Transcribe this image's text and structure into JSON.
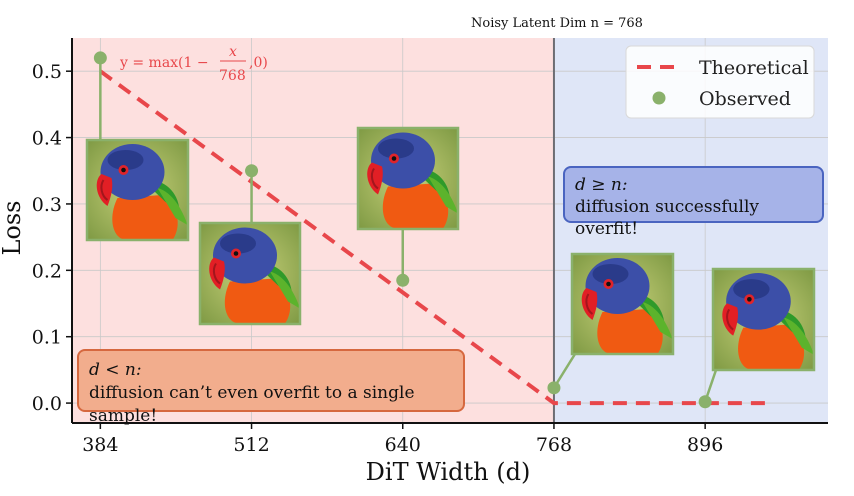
{
  "chart_data": {
    "type": "line",
    "title": "Noisy Latent Dim n = 768",
    "xlabel": "DiT Width (d)",
    "ylabel": "Loss",
    "x_ticks": [
      384,
      512,
      640,
      768,
      896
    ],
    "y_ticks": [
      "0.0",
      "0.1",
      "0.2",
      "0.3",
      "0.4",
      "0.5"
    ],
    "xlim": [
      360,
      1000
    ],
    "ylim": [
      -0.03,
      0.55
    ],
    "threshold_x": 768,
    "series": [
      {
        "name": "Theoretical",
        "style": "dashed",
        "color": "#e8474b",
        "formula": "y = max(1 − x/768, 0)",
        "x": [
          384,
          768,
          950
        ],
        "y": [
          0.5,
          0.0,
          0.0
        ]
      },
      {
        "name": "Observed",
        "style": "marker",
        "color": "#8ab16b",
        "x": [
          384,
          512,
          640,
          768,
          896
        ],
        "y": [
          0.52,
          0.35,
          0.185,
          0.023,
          0.002
        ]
      }
    ],
    "regions": [
      {
        "name": "d < n",
        "color": "#fde0df"
      },
      {
        "name": "d ≥ n",
        "color": "#dfe6f7"
      }
    ],
    "legend": [
      "Theoretical",
      "Observed"
    ],
    "legend_position": "top-right"
  },
  "callouts": {
    "left_math": "d < n:",
    "left_text": "diffusion can’t even overfit to a single sample!",
    "right_math": "d ≥ n:",
    "right_text": "diffusion successfully overfit!"
  },
  "colors": {
    "red_region": "#fde0df",
    "blue_region": "#dfe6f7",
    "theory": "#e8474b",
    "observed": "#8ab16b"
  }
}
